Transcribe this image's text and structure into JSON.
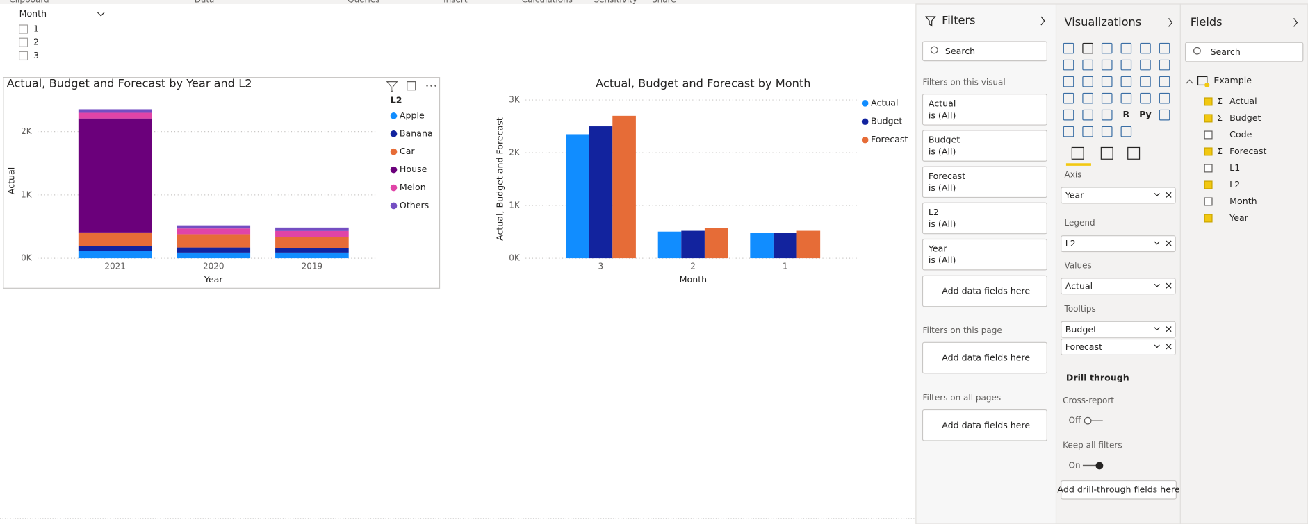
{
  "ribbon": {
    "groups": [
      "Clipboard",
      "Data",
      "Queries",
      "Insert",
      "Calculations",
      "Sensitivity",
      "Share"
    ]
  },
  "slicer": {
    "title": "Month",
    "items": [
      "1",
      "2",
      "3"
    ]
  },
  "chart_data": [
    {
      "type": "stacked_bar",
      "title": "Actual, Budget and Forecast by Year and L2",
      "x_label": "Year",
      "y_label": "Actual",
      "legend_title": "L2",
      "categories": [
        "2021",
        "2020",
        "2019"
      ],
      "ylim": [
        0,
        2500
      ],
      "yticks": [
        {
          "value": 0,
          "label": "0K"
        },
        {
          "value": 1000,
          "label": "1K"
        },
        {
          "value": 2000,
          "label": "2K"
        }
      ],
      "grid": true,
      "series": [
        {
          "name": "Apple",
          "color": "#118dff",
          "values": [
            118,
            90,
            90
          ]
        },
        {
          "name": "Banana",
          "color": "#12239e",
          "values": [
            80,
            80,
            65
          ]
        },
        {
          "name": "Car",
          "color": "#e66c37",
          "values": [
            210,
            210,
            185
          ]
        },
        {
          "name": "House",
          "color": "#6b007b",
          "values": [
            1800,
            0,
            0
          ]
        },
        {
          "name": "Melon",
          "color": "#e044a7",
          "values": [
            90,
            90,
            90
          ]
        },
        {
          "name": "Others",
          "color": "#744ec2",
          "values": [
            55,
            50,
            55
          ]
        }
      ]
    },
    {
      "type": "bar",
      "title": "Actual, Budget and Forecast by Month",
      "x_label": "Month",
      "y_label": "Actual, Budget and Forecast",
      "categories": [
        "3",
        "2",
        "1"
      ],
      "ylim": [
        0,
        3000
      ],
      "yticks": [
        {
          "value": 0,
          "label": "0K"
        },
        {
          "value": 1000,
          "label": "1K"
        },
        {
          "value": 2000,
          "label": "2K"
        },
        {
          "value": 3000,
          "label": "3K"
        }
      ],
      "grid": true,
      "series": [
        {
          "name": "Actual",
          "color": "#118dff",
          "values": [
            2350,
            505,
            475
          ]
        },
        {
          "name": "Budget",
          "color": "#12239e",
          "values": [
            2500,
            520,
            475
          ]
        },
        {
          "name": "Forecast",
          "color": "#e66c37",
          "values": [
            2700,
            570,
            520
          ]
        }
      ]
    }
  ],
  "filters": {
    "title": "Filters",
    "search": "Search",
    "visual_section": "Filters on this visual",
    "cards": [
      {
        "name": "Actual",
        "state": "is (All)"
      },
      {
        "name": "Budget",
        "state": "is (All)"
      },
      {
        "name": "Forecast",
        "state": "is (All)"
      },
      {
        "name": "L2",
        "state": "is (All)"
      },
      {
        "name": "Year",
        "state": "is (All)"
      }
    ],
    "add_fields": "Add data fields here",
    "page_section": "Filters on this page",
    "all_section": "Filters on all pages"
  },
  "visualizations": {
    "title": "Visualizations",
    "script_visuals": [
      "R",
      "Py"
    ],
    "wells": [
      {
        "label": "Axis",
        "fields": [
          "Year"
        ]
      },
      {
        "label": "Legend",
        "fields": [
          "L2"
        ]
      },
      {
        "label": "Values",
        "fields": [
          "Actual"
        ]
      },
      {
        "label": "Tooltips",
        "fields": [
          "Budget",
          "Forecast"
        ]
      }
    ],
    "drill_title": "Drill through",
    "cross_report": "Cross-report",
    "cross_state": "Off",
    "keep_filters": "Keep all filters",
    "keep_state": "On",
    "drill_button": "Add drill-through fields here"
  },
  "fields": {
    "title": "Fields",
    "search": "Search",
    "table": "Example",
    "items": [
      {
        "name": "Actual",
        "icon": "Σ",
        "checked": true
      },
      {
        "name": "Budget",
        "icon": "Σ",
        "checked": true
      },
      {
        "name": "Code",
        "checked": false
      },
      {
        "name": "Forecast",
        "icon": "Σ",
        "checked": true
      },
      {
        "name": "L1",
        "checked": false
      },
      {
        "name": "L2",
        "checked": true
      },
      {
        "name": "Month",
        "checked": false
      },
      {
        "name": "Year",
        "checked": true
      }
    ]
  }
}
